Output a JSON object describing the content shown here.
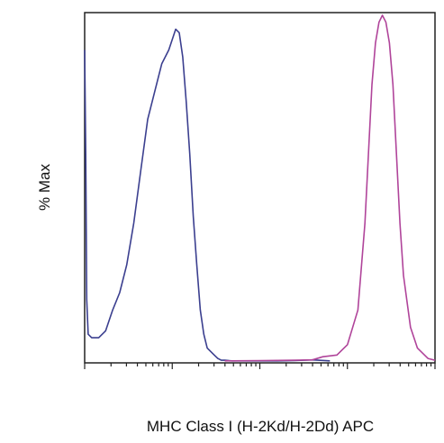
{
  "chart_data": {
    "type": "line",
    "xlabel": "MHC Class I (H-2Kd/H-2Dd) APC",
    "ylabel": "% Max",
    "x_scale": "log",
    "xlim": [
      0,
      1
    ],
    "ylim": [
      0,
      100
    ],
    "grid": false,
    "legend": "none",
    "series": [
      {
        "color": "#3b3f8f",
        "x": [
          0.0,
          0.003,
          0.006,
          0.01,
          0.02,
          0.04,
          0.06,
          0.08,
          0.1,
          0.12,
          0.14,
          0.16,
          0.18,
          0.2,
          0.22,
          0.24,
          0.26,
          0.27,
          0.28,
          0.29,
          0.3,
          0.31,
          0.32,
          0.33,
          0.34,
          0.35,
          0.37,
          0.38,
          0.39,
          0.4,
          0.42,
          0.45,
          0.5,
          0.55,
          0.6,
          0.65,
          0.7
        ],
        "y": [
          90,
          60,
          18,
          8,
          7,
          7,
          9,
          15,
          20,
          28,
          40,
          55,
          70,
          78,
          86,
          90,
          96,
          95,
          88,
          75,
          60,
          42,
          28,
          15,
          8,
          4,
          2,
          1,
          0.5,
          0.5,
          0.3,
          0.3,
          0.3,
          0.3,
          0.4,
          0.6,
          0.3
        ]
      },
      {
        "color": "#b0449a",
        "x": [
          0.4,
          0.5,
          0.6,
          0.65,
          0.68,
          0.72,
          0.75,
          0.78,
          0.8,
          0.81,
          0.82,
          0.83,
          0.84,
          0.85,
          0.86,
          0.87,
          0.88,
          0.89,
          0.9,
          0.91,
          0.93,
          0.95,
          0.98,
          1.0
        ],
        "y": [
          0.3,
          0.4,
          0.5,
          0.6,
          1.5,
          2,
          5,
          15,
          40,
          60,
          80,
          92,
          98,
          100,
          98,
          92,
          80,
          60,
          40,
          25,
          10,
          4,
          1,
          0.5
        ]
      }
    ]
  }
}
